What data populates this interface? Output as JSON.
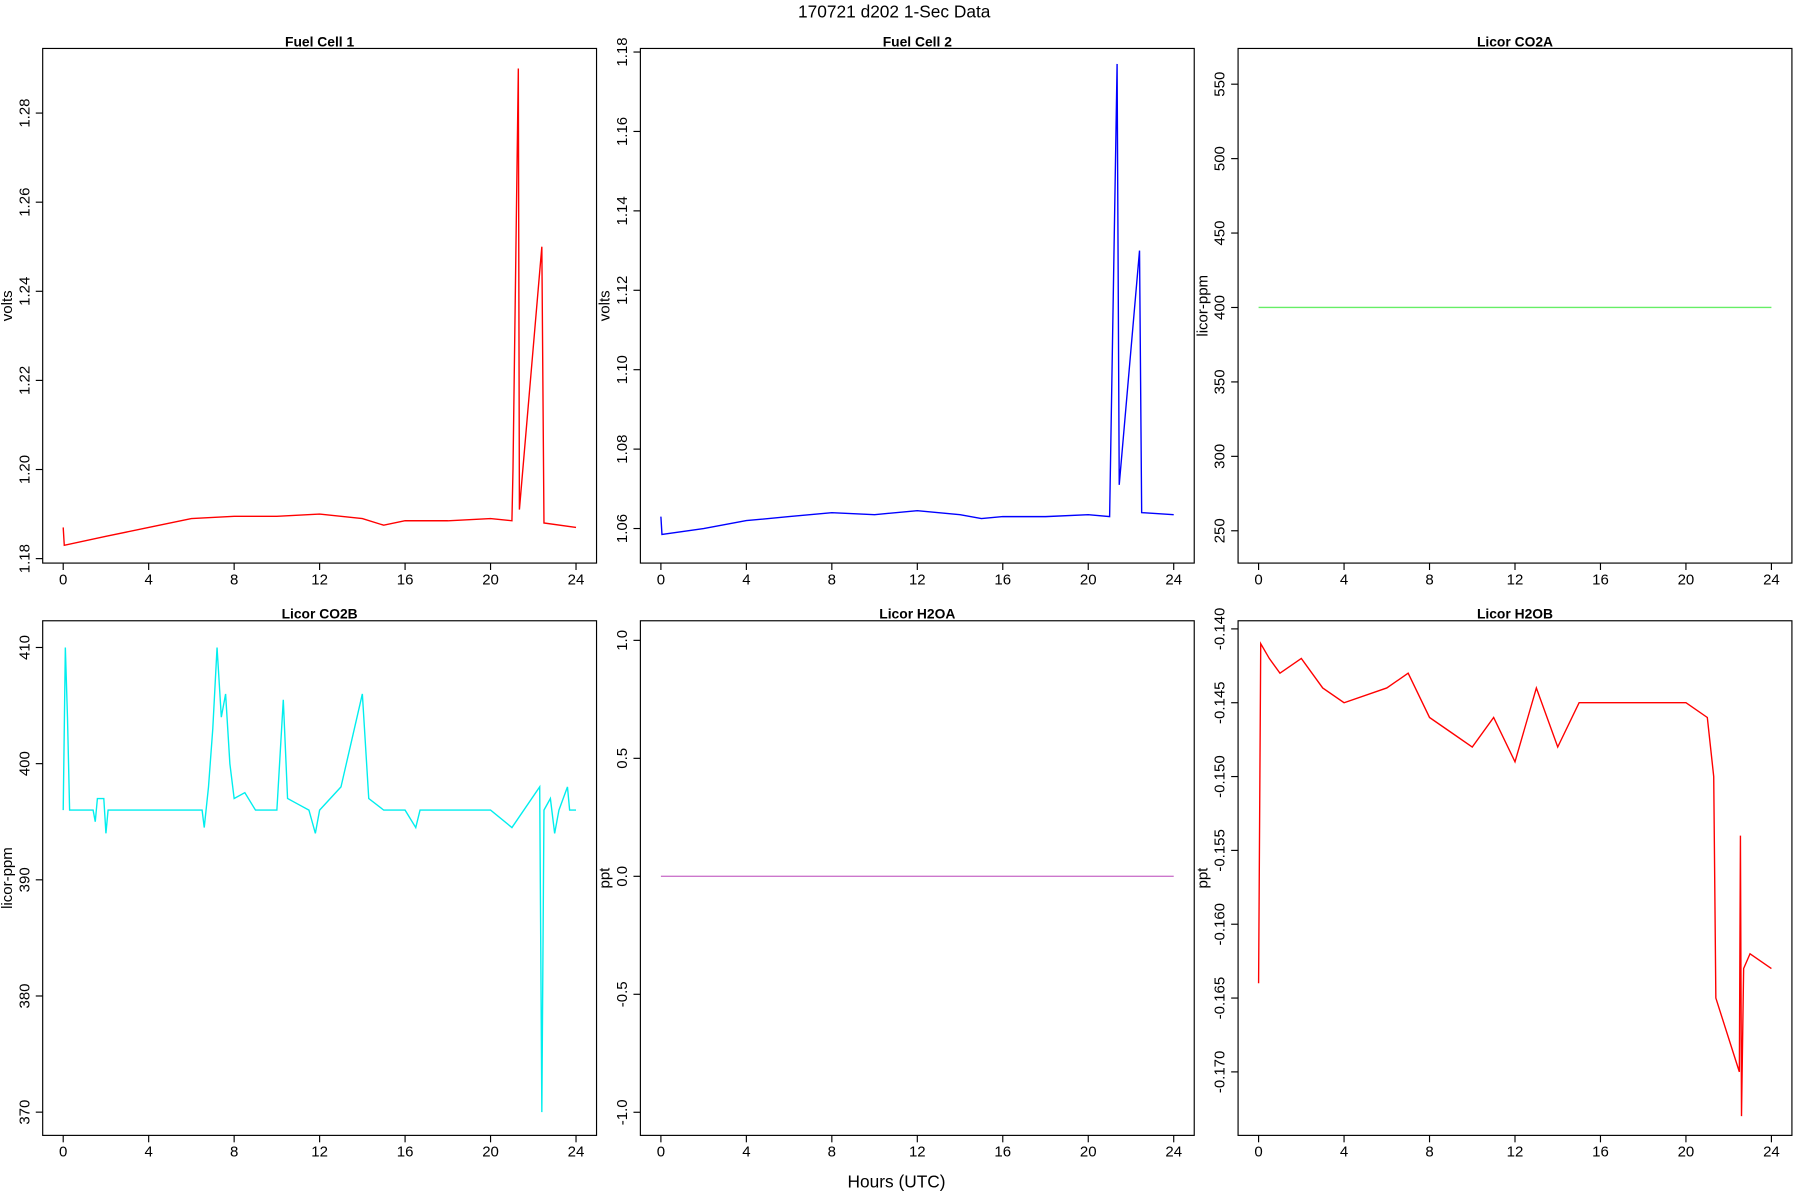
{
  "title": "170721   d202   1-Sec Data",
  "xlabel": "Hours (UTC)",
  "chart_data": [
    {
      "type": "line",
      "title": "Fuel Cell 1",
      "ylabel": "volts",
      "color": "#ff0000",
      "x": [
        0,
        0.05,
        2,
        4,
        6,
        8,
        10,
        12,
        14,
        15,
        16,
        18,
        20,
        21,
        21.05,
        21.3,
        21.35,
        22.4,
        22.5,
        24
      ],
      "values": [
        1.187,
        1.183,
        1.185,
        1.187,
        1.189,
        1.1895,
        1.1895,
        1.19,
        1.189,
        1.1875,
        1.1885,
        1.1885,
        1.189,
        1.1885,
        1.2,
        1.29,
        1.191,
        1.25,
        1.188,
        1.187
      ],
      "xlim": [
        -0.96,
        24.96
      ],
      "xticks": [
        0,
        4,
        8,
        12,
        16,
        20,
        24
      ],
      "ylim": [
        1.179,
        1.2945
      ],
      "yticks": [
        1.18,
        {
          "value": 1.2,
          "label": "1.20"
        },
        1.22,
        1.24,
        1.26,
        1.28
      ]
    },
    {
      "type": "line",
      "title": "Fuel Cell 2",
      "ylabel": "volts",
      "color": "#0000ff",
      "x": [
        0,
        0.05,
        2,
        4,
        6,
        8,
        10,
        12,
        14,
        15,
        16,
        18,
        20,
        21,
        21.35,
        21.45,
        22.4,
        22.5,
        24
      ],
      "values": [
        1.063,
        1.0585,
        1.06,
        1.062,
        1.063,
        1.064,
        1.0635,
        1.0645,
        1.0635,
        1.0625,
        1.063,
        1.063,
        1.0635,
        1.063,
        1.177,
        1.071,
        1.13,
        1.064,
        1.0635
      ],
      "xlim": [
        -0.96,
        24.96
      ],
      "xticks": [
        0,
        4,
        8,
        12,
        16,
        20,
        24
      ],
      "ylim": [
        1.0513,
        1.1809
      ],
      "yticks": [
        1.06,
        1.08,
        {
          "value": 1.1,
          "label": "1.10"
        },
        1.12,
        1.14,
        1.16,
        1.18
      ]
    },
    {
      "type": "line",
      "title": "Licor CO2A",
      "ylabel": "licor-ppm",
      "color": "#66ee66",
      "x": [
        0,
        24
      ],
      "values": [
        400,
        400
      ],
      "xlim": [
        -0.96,
        24.96
      ],
      "xticks": [
        0,
        4,
        8,
        12,
        16,
        20,
        24
      ],
      "ylim": [
        228.3,
        574
      ],
      "yticks": [
        250,
        300,
        350,
        400,
        450,
        500,
        550
      ]
    },
    {
      "type": "line",
      "title": "Licor CO2B",
      "ylabel": "licor-ppm",
      "color": "#00eeee",
      "x": [
        0,
        0.1,
        0.2,
        0.3,
        1.4,
        1.5,
        1.6,
        1.9,
        2,
        2.1,
        6.5,
        6.6,
        6.8,
        7,
        7.2,
        7.4,
        7.6,
        7.8,
        8,
        8.5,
        9,
        10,
        10.3,
        10.5,
        11,
        11.5,
        11.8,
        12,
        13,
        13.5,
        14,
        14.3,
        15,
        16,
        16.5,
        16.7,
        20,
        21,
        22.3,
        22.4,
        22.5,
        22.8,
        23,
        23.2,
        23.6,
        23.7,
        24
      ],
      "values": [
        396,
        410,
        404,
        396,
        396,
        395,
        397,
        397,
        394,
        396,
        396,
        394.5,
        398,
        403,
        410,
        404,
        406,
        400,
        397,
        397.5,
        396,
        396,
        405.5,
        397,
        396.5,
        396,
        394,
        396,
        398,
        402,
        406,
        397,
        396,
        396,
        394.5,
        396,
        396,
        394.5,
        398,
        370,
        396,
        397,
        394,
        396,
        398,
        396,
        396
      ],
      "xlim": [
        -0.96,
        24.96
      ],
      "xticks": [
        0,
        4,
        8,
        12,
        16,
        20,
        24
      ],
      "ylim": [
        368,
        412.3
      ],
      "yticks": [
        370,
        380,
        390,
        400,
        410
      ]
    },
    {
      "type": "line",
      "title": "Licor H2OA",
      "ylabel": "ppt",
      "color": "#cc77cc",
      "x": [
        0,
        24
      ],
      "values": [
        0,
        0
      ],
      "xlim": [
        -0.96,
        24.96
      ],
      "xticks": [
        0,
        4,
        8,
        12,
        16,
        20,
        24
      ],
      "ylim": [
        -1.098,
        1.083
      ],
      "yticks": [
        {
          "value": -1,
          "label": "-1.0"
        },
        -0.5,
        {
          "value": 0,
          "label": "0.0"
        },
        0.5,
        {
          "value": 1,
          "label": "1.0"
        }
      ]
    },
    {
      "type": "line",
      "title": "Licor H2OB",
      "ylabel": "ppt",
      "color": "#ff0000",
      "x": [
        0,
        0.1,
        0.5,
        1,
        2,
        3,
        4,
        6,
        7,
        8,
        9,
        10,
        11,
        12,
        13,
        14,
        15,
        17,
        20,
        21,
        21.3,
        21.4,
        22.5,
        22.55,
        22.6,
        22.7,
        23,
        24
      ],
      "values": [
        -0.164,
        -0.141,
        -0.142,
        -0.143,
        -0.142,
        -0.144,
        -0.145,
        -0.144,
        -0.143,
        -0.146,
        -0.147,
        -0.148,
        -0.146,
        -0.149,
        -0.144,
        -0.148,
        -0.145,
        -0.145,
        -0.145,
        -0.146,
        -0.15,
        -0.165,
        -0.17,
        -0.154,
        -0.173,
        -0.163,
        -0.162,
        -0.163
      ],
      "xlim": [
        -0.96,
        24.96
      ],
      "xticks": [
        0,
        4,
        8,
        12,
        16,
        20,
        24
      ],
      "ylim": [
        -0.1743,
        -0.13945
      ],
      "yticks": [
        {
          "value": -0.14,
          "label": "-0.140"
        },
        {
          "value": -0.145,
          "label": "-0.145"
        },
        {
          "value": -0.15,
          "label": "-0.150"
        },
        {
          "value": -0.155,
          "label": "-0.155"
        },
        {
          "value": -0.16,
          "label": "-0.160"
        },
        {
          "value": -0.165,
          "label": "-0.165"
        },
        {
          "value": -0.17,
          "label": "-0.170"
        }
      ]
    }
  ]
}
